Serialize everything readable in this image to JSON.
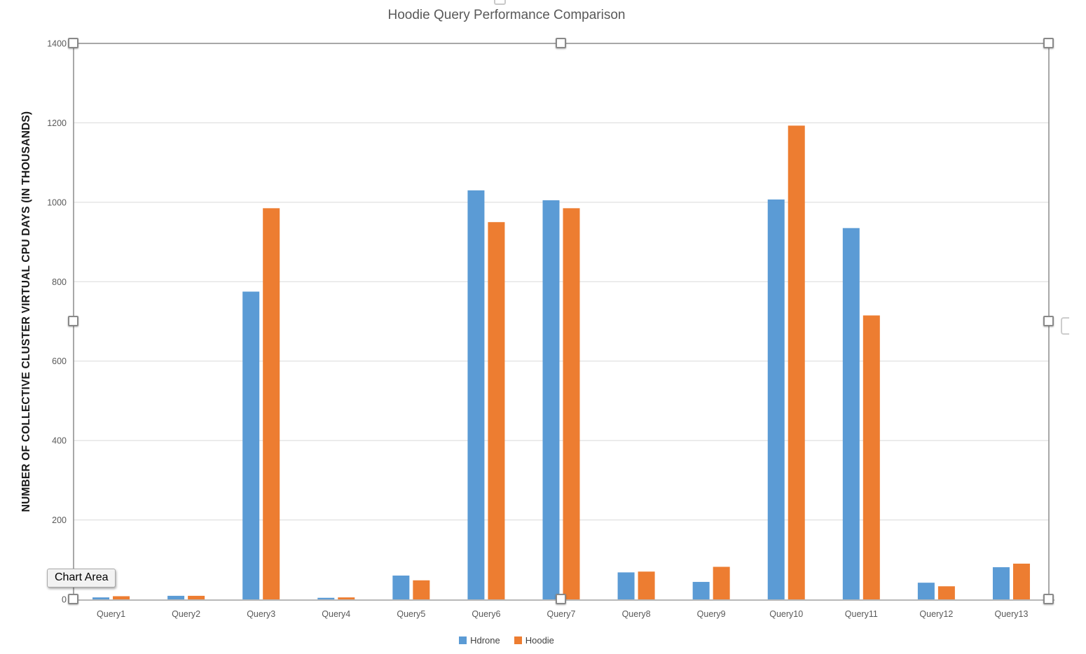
{
  "chart_data": {
    "type": "bar",
    "title": "Hoodie Query Performance Comparison",
    "xlabel": "",
    "ylabel": "NUMBER OF COLLECTIVE CLUSTER VIRTUAL CPU DAYS (IN THOUSANDS)",
    "categories": [
      "Query1",
      "Query2",
      "Query3",
      "Query4",
      "Query5",
      "Query6",
      "Query7",
      "Query8",
      "Query9",
      "Query10",
      "Query11",
      "Query12",
      "Query13"
    ],
    "series": [
      {
        "name": "Hdrone",
        "color": "#5B9BD5",
        "values": [
          5,
          9,
          775,
          4,
          60,
          1030,
          1005,
          68,
          44,
          1007,
          935,
          42,
          81
        ]
      },
      {
        "name": "Hoodie",
        "color": "#ED7D31",
        "values": [
          8,
          9,
          985,
          5,
          48,
          950,
          985,
          70,
          82,
          1193,
          715,
          33,
          90
        ]
      }
    ],
    "ylim": [
      0,
      1400
    ],
    "ytick_interval": 200,
    "yticks": [
      0,
      200,
      400,
      600,
      800,
      1000,
      1200,
      1400
    ],
    "grid": true,
    "legend_position": "bottom"
  },
  "selection": {
    "tooltip": "Chart Area"
  },
  "colors": {
    "gridline": "#d9d9d9",
    "axis_line": "#a0a0a0",
    "selection_border": "#8c8c8c",
    "tick_label": "#595959",
    "title": "#595959"
  }
}
